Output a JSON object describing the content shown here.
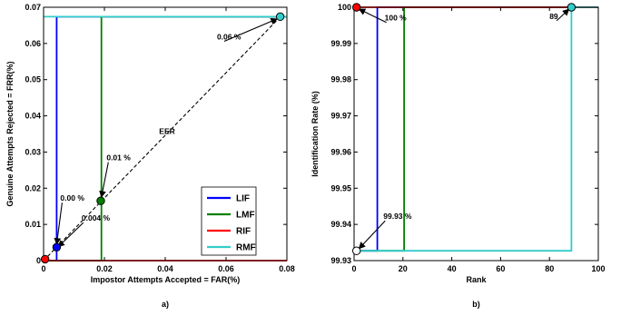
{
  "chart_data": [
    {
      "panel_label": "a)",
      "type": "line",
      "xlabel": "Impostor Attempts Accepted = FAR(%)",
      "ylabel": "Genuine Attempts Rejected = FRR(%)",
      "xlim": [
        0,
        0.08
      ],
      "ylim": [
        0,
        0.07
      ],
      "xticks": [
        0,
        0.02,
        0.04,
        0.06,
        0.08
      ],
      "xtick_labels": [
        "0",
        "0.02",
        "0.04",
        "0.06",
        "0.08"
      ],
      "yticks": [
        0,
        0.01,
        0.02,
        0.03,
        0.04,
        0.05,
        0.06,
        0.07
      ],
      "ytick_labels": [
        "0",
        "0.01",
        "0.02",
        "0.03",
        "0.04",
        "0.05",
        "0.06",
        "0.07"
      ],
      "legend_position": "bottom-right",
      "grid": false,
      "series": [
        {
          "name": "LIF",
          "color": "#0000ff",
          "x": [
            0.0043,
            0.0043,
            0.08
          ],
          "y": [
            0,
            0.0674,
            0.0674
          ]
        },
        {
          "name": "LMF",
          "color": "#008000",
          "x": [
            0.0002,
            0.019,
            0.019,
            0.0185,
            0.08
          ],
          "y": [
            0,
            0,
            0.0674,
            0.0674,
            0.0674
          ]
        },
        {
          "name": "RIF",
          "color": "#ff0000",
          "x": [
            0.0,
            0.08
          ],
          "y": [
            0.0,
            0.0
          ]
        },
        {
          "name": "RMF",
          "color": "#33cccc",
          "x": [
            0.0,
            0.08
          ],
          "y": [
            0.0674,
            0.0674
          ]
        }
      ],
      "eer_line": {
        "label": "EER",
        "x": [
          0.0,
          0.078
        ],
        "y": [
          0.0,
          0.0675
        ]
      },
      "markers": [
        {
          "x": 0.0005,
          "y": 0.0004,
          "color": "#ff0000"
        },
        {
          "x": 0.0043,
          "y": 0.0037,
          "color": "#0000ff"
        },
        {
          "x": 0.0188,
          "y": 0.0165,
          "color": "#008000"
        },
        {
          "x": 0.0778,
          "y": 0.0674,
          "color": "#33cccc"
        }
      ],
      "annotations": [
        {
          "text": "0.00 %",
          "x": 0.0055,
          "y": 0.0165,
          "to_x": 0.0043,
          "to_y": 0.0045
        },
        {
          "text": "0.004 %",
          "x": 0.0125,
          "y": 0.011,
          "to_x": 0.0048,
          "to_y": 0.0038
        },
        {
          "text": "0.01 %",
          "x": 0.0207,
          "y": 0.0277,
          "to_x": 0.019,
          "to_y": 0.0175
        },
        {
          "text": "0.06 %",
          "x": 0.057,
          "y": 0.0611,
          "to_x": 0.0768,
          "to_y": 0.0668
        }
      ]
    },
    {
      "panel_label": "b)",
      "type": "line",
      "xlabel": "Rank",
      "ylabel": "Identification Rate (%)",
      "xlim": [
        0,
        100
      ],
      "ylim": [
        99.93,
        100
      ],
      "xticks": [
        0,
        20,
        40,
        60,
        80,
        100
      ],
      "xtick_labels": [
        "0",
        "20",
        "40",
        "60",
        "80",
        "100"
      ],
      "yticks": [
        99.93,
        99.94,
        99.95,
        99.96,
        99.97,
        99.98,
        99.99,
        100
      ],
      "ytick_labels": [
        "99.93",
        "99.94",
        "99.95",
        "99.96",
        "99.97",
        "99.98",
        "99.99",
        "100"
      ],
      "grid": false,
      "series": [
        {
          "name": "LIF",
          "color": "#0000ff",
          "x": [
            1,
            9.5,
            9.5,
            100
          ],
          "y": [
            99.9327,
            99.9327,
            100,
            100
          ]
        },
        {
          "name": "LMF",
          "color": "#008000",
          "x": [
            1,
            20.5,
            20.5,
            100
          ],
          "y": [
            99.9327,
            99.9327,
            100,
            100
          ]
        },
        {
          "name": "RIF",
          "color": "#ff0000",
          "x": [
            1,
            100
          ],
          "y": [
            100,
            100
          ]
        },
        {
          "name": "RMF",
          "color": "#33cccc",
          "x": [
            1,
            89,
            89,
            100
          ],
          "y": [
            99.9327,
            99.9327,
            100,
            100
          ]
        }
      ],
      "markers": [
        {
          "x": 1,
          "y": 100,
          "color": "#ff0000"
        },
        {
          "x": 89,
          "y": 100,
          "color": "#33cccc"
        },
        {
          "x": 1,
          "y": 99.9327,
          "color": "#ffffff"
        }
      ],
      "annotations": [
        {
          "text": "100 %",
          "x": 12.5,
          "y": 99.9963,
          "to_x": 2,
          "to_y": 99.9995
        },
        {
          "text": "89",
          "x": 80,
          "y": 99.9968,
          "to_x": 88,
          "to_y": 99.9995
        },
        {
          "text": "99.93 %",
          "x": 12,
          "y": 99.9415,
          "to_x": 2,
          "to_y": 99.9333
        }
      ]
    }
  ]
}
